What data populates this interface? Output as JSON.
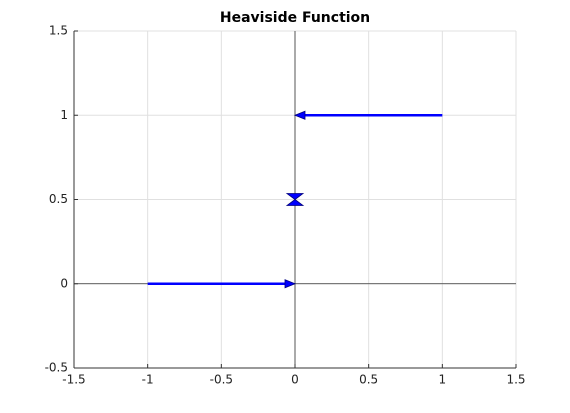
{
  "chart_data": {
    "type": "quiver",
    "title": "Heaviside Function",
    "arrows": [
      {
        "x": -1,
        "y": 0,
        "u": 1,
        "v": 0
      },
      {
        "x": 1,
        "y": 1,
        "u": -1,
        "v": 0
      }
    ],
    "markers": {
      "x": [
        0
      ],
      "y": [
        0.5
      ]
    },
    "color": "#0000ff",
    "xlim": [
      -1.5,
      1.5
    ],
    "xticks": [
      -1.5,
      -1,
      -0.5,
      0,
      0.5,
      1,
      1.5
    ],
    "ylim": [
      -0.5,
      1.5
    ],
    "yticks": [
      -0.5,
      0,
      0.5,
      1,
      1.5
    ],
    "grid": true
  }
}
